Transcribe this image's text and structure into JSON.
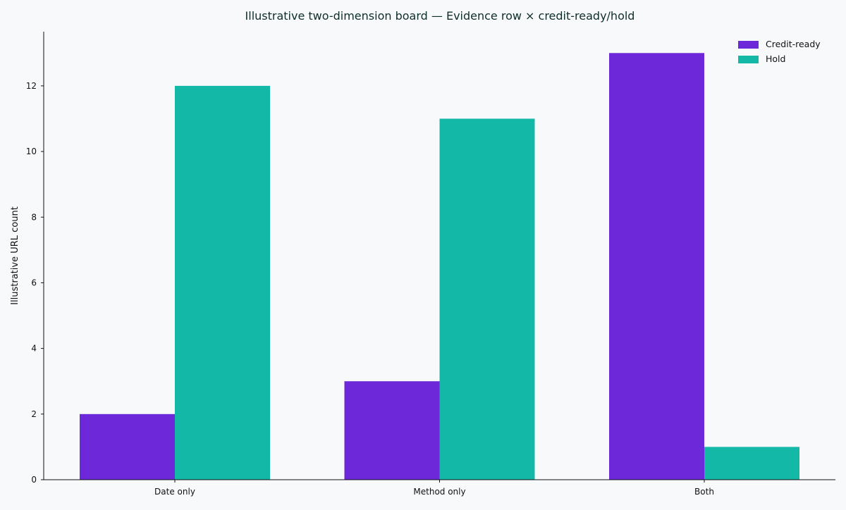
{
  "chart_data": {
    "type": "bar",
    "title": "Illustrative two-dimension board — Evidence row × credit-ready/hold",
    "xlabel": "",
    "ylabel": "Illustrative URL count",
    "categories": [
      "Date only",
      "Method only",
      "Both"
    ],
    "series": [
      {
        "name": "Credit-ready",
        "values": [
          2,
          3,
          13
        ],
        "color": "#6c28d9"
      },
      {
        "name": "Hold",
        "values": [
          12,
          11,
          1
        ],
        "color": "#14b8a6"
      }
    ],
    "ylim": [
      0,
      13.65
    ],
    "yticks": [
      0,
      2,
      4,
      6,
      8,
      10,
      12
    ],
    "grid": false,
    "legend_position": "top-right",
    "background": "#f8f9fb",
    "title_color": "#0f2e2a"
  }
}
